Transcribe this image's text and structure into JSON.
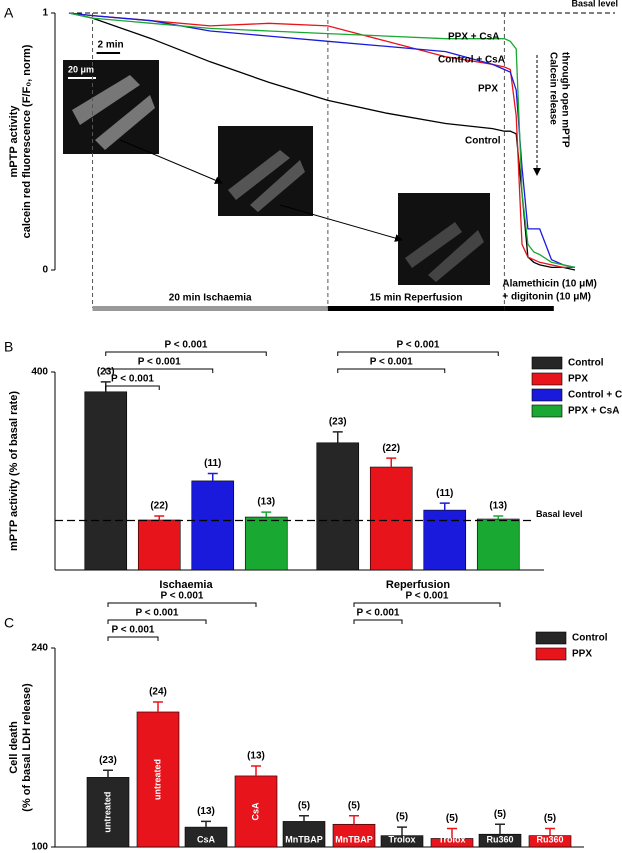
{
  "chart_data": [
    {
      "type": "line",
      "panel": "A",
      "y_label_lines": [
        "mPTP activity",
        "calcein red fluorescence (F/F₀, norm)"
      ],
      "xlim": [
        -2,
        41
      ],
      "ylim": [
        0,
        1
      ],
      "yticks": [
        0,
        1
      ],
      "x": [
        -2,
        0,
        5,
        10,
        15,
        20,
        25,
        30,
        34,
        35,
        35.5,
        36,
        36.5,
        37,
        37.5,
        38,
        39,
        40,
        41
      ],
      "series": [
        {
          "name": "Control",
          "color": "#000000",
          "values": [
            1,
            0.98,
            0.9,
            0.81,
            0.73,
            0.66,
            0.61,
            0.57,
            0.55,
            0.54,
            0.54,
            0.53,
            0.3,
            0.05,
            0.03,
            0.02,
            0.01,
            0.01,
            0
          ]
        },
        {
          "name": "PPX",
          "color": "#e8141c",
          "values": [
            1,
            0.99,
            0.97,
            0.95,
            0.96,
            0.95,
            0.89,
            0.83,
            0.8,
            0.79,
            0.78,
            0.6,
            0.1,
            0.05,
            0.04,
            0.03,
            0.02,
            0.01,
            0.01
          ]
        },
        {
          "name": "Control + CsA",
          "color": "#1a1adc",
          "values": [
            1,
            0.99,
            0.97,
            0.93,
            0.91,
            0.89,
            0.87,
            0.85,
            0.8,
            0.78,
            0.77,
            0.7,
            0.4,
            0.16,
            0.16,
            0.16,
            0.04,
            0.02,
            0.01
          ]
        },
        {
          "name": "PPX + CsA",
          "color": "#19a832",
          "values": [
            1,
            0.98,
            0.96,
            0.94,
            0.93,
            0.92,
            0.91,
            0.9,
            0.9,
            0.9,
            0.89,
            0.86,
            0.3,
            0.1,
            0.07,
            0.06,
            0.03,
            0.02,
            0.01
          ]
        }
      ],
      "basal_level": {
        "value": 1,
        "label": "Basal level"
      },
      "scale_bar": {
        "label": "2 min",
        "length": 2
      },
      "image_scale_label": "20 μm",
      "annotation_lines": [
        "Calcein release",
        "through open mPTP"
      ],
      "phases": [
        {
          "label_lines": [
            "20 min Ischaemia"
          ],
          "start": 0,
          "end": 20,
          "color": "#999999"
        },
        {
          "label_lines": [
            "15 min Reperfusion"
          ],
          "start": 20,
          "end": 35,
          "color": "#000000"
        },
        {
          "label_lines": [
            "Alamethicin (10 μM)",
            "+ digitonin (10 μM)"
          ],
          "start": 35,
          "end": 39.2,
          "color": "#000000"
        }
      ]
    },
    {
      "type": "bar",
      "panel": "B",
      "y_label": "mPTP activity (% of basal rate)",
      "categories": [
        "Ischaemia",
        "Reperfusion"
      ],
      "ylim": [
        0,
        400
      ],
      "yticks": [
        400
      ],
      "series": [
        {
          "name": "Control",
          "color": "#262626",
          "values": [
            360,
            257
          ],
          "errors": [
            20,
            22
          ],
          "n_labels": [
            "(23)",
            "(23)"
          ]
        },
        {
          "name": "PPX",
          "color": "#e8141c",
          "values": [
            101,
            208
          ],
          "errors": [
            8,
            18
          ],
          "n_labels": [
            "(22)",
            "(22)"
          ]
        },
        {
          "name": "Control + CsA",
          "color": "#1a1adc",
          "values": [
            180,
            121
          ],
          "errors": [
            15,
            14
          ],
          "n_labels": [
            "(11)",
            "(11)"
          ]
        },
        {
          "name": "PPX + CsA",
          "color": "#19a832",
          "values": [
            107,
            103
          ],
          "errors": [
            10,
            6
          ],
          "n_labels": [
            "(13)",
            "(13)"
          ]
        }
      ],
      "basal_level": {
        "value": 100,
        "label": "Basal level"
      },
      "significance": [
        {
          "label": "P < 0.001",
          "from": [
            0,
            0
          ],
          "to": [
            0,
            1
          ]
        },
        {
          "label": "P < 0.001",
          "from": [
            0,
            0
          ],
          "to": [
            0,
            2
          ]
        },
        {
          "label": "P < 0.001",
          "from": [
            0,
            0
          ],
          "to": [
            0,
            3
          ]
        },
        {
          "label": "P < 0.001",
          "from": [
            1,
            0
          ],
          "to": [
            1,
            2
          ]
        },
        {
          "label": "P < 0.001",
          "from": [
            1,
            0
          ],
          "to": [
            1,
            3
          ]
        }
      ]
    },
    {
      "type": "bar",
      "panel": "C",
      "y_label_lines": [
        "Cell death",
        "(% of basal LDH release)"
      ],
      "categories": [
        "untreated",
        "CsA",
        "MnTBAP",
        "Trolox",
        "Ru360"
      ],
      "ylim": [
        100,
        240
      ],
      "yticks": [
        100,
        240
      ],
      "series": [
        {
          "name": "Control",
          "color": "#262626",
          "values": [
            149,
            114,
            118,
            108,
            109
          ],
          "errors": [
            5,
            4,
            4,
            6,
            7
          ],
          "n_labels": [
            "(23)",
            "(13)",
            "(5)",
            "(5)",
            "(5)"
          ]
        },
        {
          "name": "PPX",
          "color": "#e8141c",
          "values": [
            195,
            150,
            116,
            106,
            108
          ],
          "errors": [
            7,
            7,
            6,
            7,
            5
          ],
          "n_labels": [
            "(24)",
            "(13)",
            "(5)",
            "(5)",
            "(5)"
          ]
        }
      ],
      "significance": [
        {
          "label": "P < 0.001",
          "from": [
            0,
            0
          ],
          "to": [
            0,
            1
          ]
        },
        {
          "label": "P < 0.001",
          "from": [
            0,
            0
          ],
          "to": [
            1,
            0
          ]
        },
        {
          "label": "P < 0.001",
          "from": [
            0,
            0
          ],
          "to": [
            1,
            1
          ]
        },
        {
          "label": "P < 0.001",
          "from": [
            2,
            1
          ],
          "to": [
            3,
            0
          ]
        },
        {
          "label": "P < 0.001",
          "from": [
            2,
            1
          ],
          "to": [
            4,
            0
          ]
        }
      ]
    }
  ]
}
